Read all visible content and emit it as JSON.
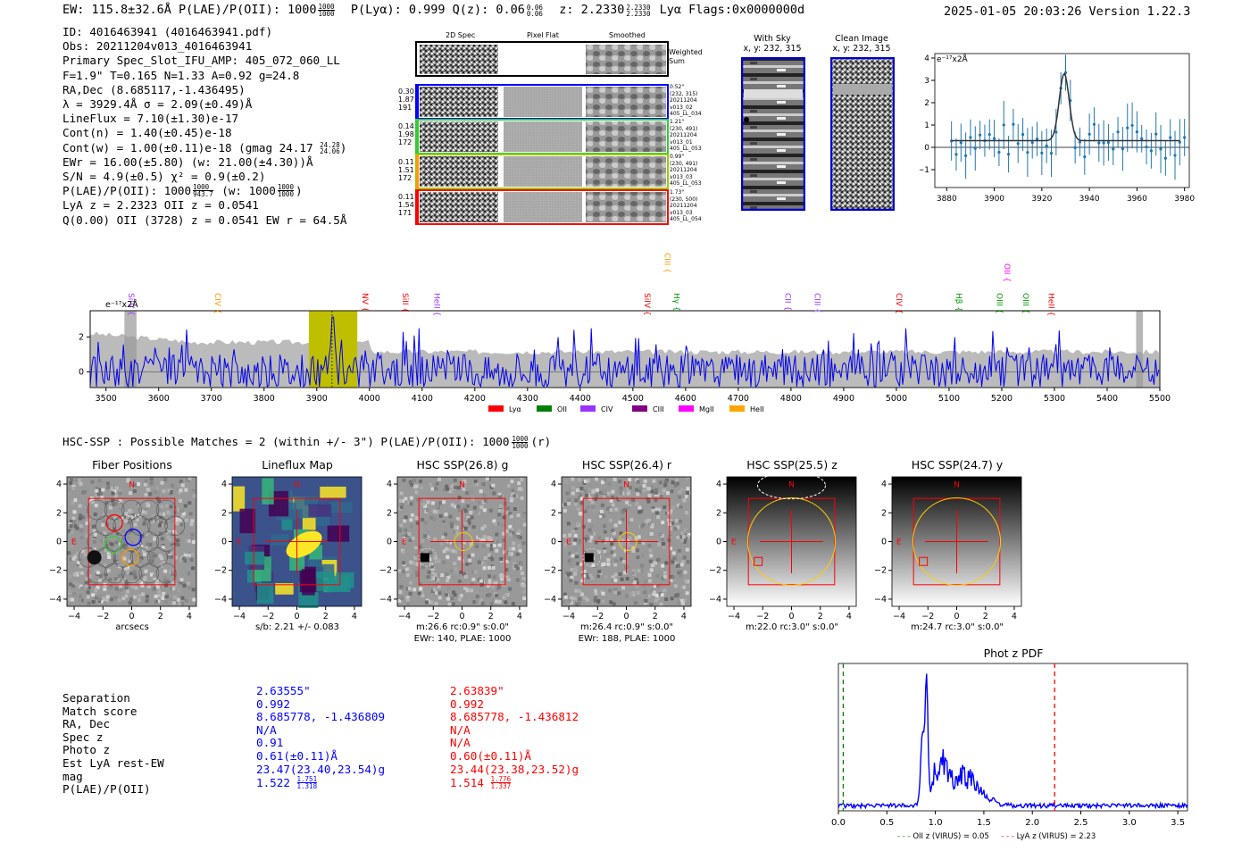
{
  "header": {
    "left": "EW: 115.8±32.6Å  P(LAE)/P(OII): 1000",
    "plae_hi": "1000",
    "plae_lo": "1000",
    "plya": "P(Lyα): 0.999  Q(z): 0.06",
    "qz_hi": "0.06",
    "qz_lo": "0.06",
    "z": "z: 2.2330",
    "z_hi": "2.2330",
    "z_lo": "2.2330",
    "rest": "Lyα  Flags:0x0000000d",
    "right": "2025-01-05 20:03:26  Version 1.22.3"
  },
  "info": [
    "ID: 4016463941 (4016463941.pdf)",
    "Obs: 20211204v013_4016463941",
    "Primary Spec_Slot_IFU_AMP: 405_072_060_LL",
    "F=1.9\"  T=0.165  N=1.33  A=0.92  g=24.8",
    "RA,Dec (8.685117,-1.436495)",
    "λ = 3929.4Å  σ = 2.09(±0.49)Å",
    "LineFlux = 7.10(±1.30)e-17",
    "Cont(n) = 1.40(±0.45)e-18",
    "Cont(w) = 1.00(±0.11)e-18 (gmag 24.17",
    "EWr = 16.00(±5.80) (w: 21.00(±4.30))Å",
    "S/N = 4.9(±0.5)  χ² = 0.9(±0.2)",
    "P(LAE)/P(OII): 1000",
    "LyA z = 2.2323  OII z = 0.0541",
    "Q(0.00) OII (3728) z = 0.0541  EW r = 64.5Å"
  ],
  "info_gmag_hi": "24.28",
  "info_gmag_lo": "24.06",
  "info_plae_hi": "1000",
  "info_plae_lo": "943.7",
  "info_plae_w": "(w: 1000",
  "info_plae_w_hi": "1000",
  "info_plae_w_lo": "1000",
  "cutouts": {
    "cols": [
      "2D Spec",
      "Pixel Flat",
      "Smoothed"
    ],
    "weighted_label": "Weighted Sum",
    "rows": [
      {
        "vals": [
          "0.30",
          "1.87",
          "191"
        ],
        "side": [
          "0.52\"",
          "(232, 315)",
          "20211204",
          "v013_02",
          "405_LL_034"
        ],
        "color": "#0000ff"
      },
      {
        "vals": [
          "0.14",
          "1.98",
          "172"
        ],
        "side": [
          "1.21\"",
          "(230, 491)",
          "20211204",
          "v013_01",
          "405_LL_053"
        ],
        "color": "#33cc33"
      },
      {
        "vals": [
          "0.11",
          "1.51",
          "172"
        ],
        "side": [
          "0.99\"",
          "(230, 491)",
          "20211204",
          "v013_03",
          "405_LL_053"
        ],
        "color": "#ff9900"
      },
      {
        "vals": [
          "0.11",
          "1.54",
          "171"
        ],
        "side": [
          "1.73\"",
          "(230, 500)",
          "20211204",
          "v013_03",
          "405_LL_054"
        ],
        "color": "#ff0000"
      }
    ]
  },
  "sky": {
    "title1": "With Sky",
    "title2": "x, y: 232, 315"
  },
  "clean": {
    "title1": "Clean Image",
    "title2": "x, y: 232, 315"
  },
  "mini_spec": {
    "ylabel": "e⁻¹⁷x2Å",
    "xticks": [
      "3880",
      "3900",
      "3920",
      "3940",
      "3960",
      "3980"
    ],
    "yticks": [
      "4",
      "3",
      "2",
      "1",
      "0",
      "−1"
    ]
  },
  "full_spec": {
    "ylabel": "e⁻¹⁷x2Å",
    "xticks": [
      "3500",
      "3600",
      "3700",
      "3800",
      "3900",
      "4000",
      "4100",
      "4200",
      "4300",
      "4400",
      "4500",
      "4600",
      "4700",
      "4800",
      "4900",
      "5000",
      "5100",
      "5200",
      "5300",
      "5400",
      "5500"
    ],
    "yticks": [
      "2",
      "0"
    ],
    "lines": [
      {
        "name": "SiIV",
        "color": "#9933ff"
      },
      {
        "name": "CIV",
        "color": "#ff9900"
      },
      {
        "name": "NV",
        "color": "#ff0000"
      },
      {
        "name": "SiII",
        "color": "#ff0000"
      },
      {
        "name": "HeII",
        "color": "#9933ff"
      },
      {
        "name": "SiIV",
        "color": "#ff0000"
      },
      {
        "name": "CIII",
        "color": "#ff9900"
      },
      {
        "name": "Hγ",
        "color": "#009900"
      },
      {
        "name": "CII",
        "color": "#9933ff"
      },
      {
        "name": "CIII",
        "color": "#9933ff"
      },
      {
        "name": "CIV",
        "color": "#ff0000"
      },
      {
        "name": "Hβ",
        "color": "#009900"
      },
      {
        "name": "OIII",
        "color": "#009900"
      },
      {
        "name": "OII",
        "color": "#ff00ff"
      },
      {
        "name": "OIII",
        "color": "#009900"
      },
      {
        "name": "HeII",
        "color": "#ff0000"
      }
    ],
    "legend": [
      {
        "name": "Lyα",
        "color": "#ff0000"
      },
      {
        "name": "OII",
        "color": "#008000"
      },
      {
        "name": "CIV",
        "color": "#9933ff"
      },
      {
        "name": "CIII",
        "color": "#800080"
      },
      {
        "name": "MgII",
        "color": "#ff00ff"
      },
      {
        "name": "HeII",
        "color": "#ffa500"
      }
    ]
  },
  "hsc": {
    "line": "HSC-SSP : Possible Matches = 2 (within +/- 3\")  P(LAE)/P(OII): 1000",
    "plae_hi": "1000",
    "plae_lo": "1000",
    "suffix": "(r)"
  },
  "panels": [
    {
      "title": "Fiber Positions",
      "cap1": "arcsecs",
      "cap2": ""
    },
    {
      "title": "Lineflux Map",
      "cap1": "s/b: 2.21 +/- 0.083",
      "cap2": ""
    },
    {
      "title": "HSC SSP(26.8) g",
      "cap1": "m:26.6 rc:0.9\"  s:0.0\"",
      "cap2": "EWr: 140, PLAE: 1000"
    },
    {
      "title": "HSC SSP(26.4) r",
      "cap1": "m:26.4 rc:0.9\"  s:0.0\"",
      "cap2": "EWr: 188, PLAE: 1000"
    },
    {
      "title": "HSC SSP(25.5) z",
      "cap1": "m:22.0 rc:3.0\"  s:0.0\"",
      "cap2": ""
    },
    {
      "title": "HSC SSP(24.7) y",
      "cap1": "m:24.7 rc:3.0\"  s:0.0\"",
      "cap2": ""
    }
  ],
  "panel_ticks": {
    "x": [
      "−4",
      "−2",
      "0",
      "2",
      "4"
    ],
    "y": [
      "4",
      "2",
      "0",
      "−2",
      "−4"
    ],
    "north": "N",
    "east": "E"
  },
  "table": {
    "labels": [
      "Separation",
      "Match score",
      "RA, Dec",
      "Spec z",
      "Photo z",
      "Est LyA rest-EW",
      "mag",
      "P(LAE)/P(OII)"
    ],
    "col1": [
      "2.63555\"",
      "0.992",
      "8.685778, -1.436809",
      "N/A",
      "0.91",
      "0.61(±0.11)Å",
      "23.47(23.40,23.54)g",
      "1.522"
    ],
    "col1_hi": "1.751",
    "col1_lo": "1.318",
    "col2": [
      "2.63839\"",
      "0.992",
      "8.685778, -1.436812",
      "N/A",
      "N/A",
      "0.60(±0.11)Å",
      "23.44(23.38,23.52)g",
      "1.514"
    ],
    "col2_hi": "1.776",
    "col2_lo": "1.337"
  },
  "photz": {
    "title": "Phot z PDF",
    "xticks": [
      "0.0",
      "0.5",
      "1.0",
      "1.5",
      "2.0",
      "2.5",
      "3.0",
      "3.5"
    ],
    "legend1": "OII z (VIRUS) = 0.05",
    "legend2": "LyA z (VIRUS) = 2.23"
  },
  "colors": {
    "accent_blue": "#0000ff",
    "accent_red": "#ff0000",
    "noise_gray": "#bbbbbb",
    "yellow": "#bfbf00"
  }
}
